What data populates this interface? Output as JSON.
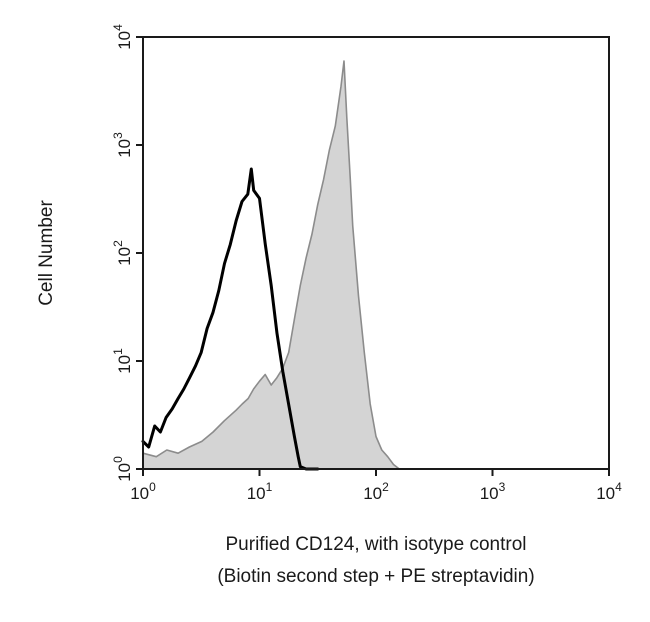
{
  "chart_data": {
    "type": "area",
    "title": "",
    "xlabel": "Purified CD124, with isotype control",
    "xlabel_line2": "(Biotin second step + PE streptavidin)",
    "ylabel": "Cell Number",
    "x_scale": "log",
    "y_scale": "log",
    "xlim": [
      1,
      10000
    ],
    "ylim": [
      1,
      10000
    ],
    "grid": false,
    "legend": "none",
    "x_ticks": [
      {
        "base": "10",
        "exp": "0",
        "value": 1
      },
      {
        "base": "10",
        "exp": "1",
        "value": 10
      },
      {
        "base": "10",
        "exp": "2",
        "value": 100
      },
      {
        "base": "10",
        "exp": "3",
        "value": 1000
      },
      {
        "base": "10",
        "exp": "4",
        "value": 10000
      }
    ],
    "y_ticks": [
      {
        "base": "10",
        "exp": "0",
        "value": 1
      },
      {
        "base": "10",
        "exp": "1",
        "value": 10
      },
      {
        "base": "10",
        "exp": "2",
        "value": 100
      },
      {
        "base": "10",
        "exp": "3",
        "value": 1000
      },
      {
        "base": "10",
        "exp": "4",
        "value": 10000
      }
    ],
    "series": [
      {
        "style": "filled",
        "fill_color": "#d4d4d4",
        "line_color": "#8c8c8c",
        "x": [
          1.0,
          1.3,
          1.6,
          2.0,
          2.5,
          3.2,
          4.0,
          5.0,
          6.3,
          7.1,
          8.0,
          8.9,
          10.0,
          11.2,
          12.6,
          14.1,
          15.8,
          17.8,
          20.0,
          22.4,
          25.1,
          28.2,
          31.6,
          35.5,
          39.8,
          44.7,
          50.1,
          53.1,
          56.2,
          60.0,
          63.1,
          70.8,
          79.4,
          89.1,
          100.0,
          112.2,
          125.9,
          141.3,
          158.5
        ],
        "y": [
          1.4,
          1.3,
          1.5,
          1.4,
          1.6,
          1.8,
          2.2,
          2.8,
          3.5,
          4.0,
          4.5,
          5.5,
          6.5,
          7.5,
          6.0,
          7.0,
          8.5,
          12.0,
          25.0,
          50.0,
          90.0,
          150.0,
          280.0,
          480.0,
          900.0,
          1500.0,
          3500.0,
          6000.0,
          1800.0,
          500.0,
          180.0,
          40.0,
          12.0,
          4.0,
          2.0,
          1.5,
          1.3,
          1.1,
          1.0
        ]
      },
      {
        "style": "line",
        "line_color": "#000000",
        "x": [
          1.0,
          1.12,
          1.26,
          1.41,
          1.58,
          1.78,
          2.0,
          2.24,
          2.51,
          2.82,
          3.16,
          3.55,
          3.98,
          4.47,
          5.01,
          5.62,
          6.31,
          7.08,
          7.94,
          8.5,
          8.91,
          10.0,
          11.22,
          12.59,
          14.13,
          15.85,
          17.78,
          19.95,
          21.5,
          22.39,
          25.12,
          28.18,
          31.62
        ],
        "y": [
          1.8,
          1.6,
          2.5,
          2.2,
          3.0,
          3.6,
          4.5,
          5.5,
          7.0,
          9.0,
          12.0,
          20.0,
          28.0,
          45.0,
          80.0,
          120.0,
          200.0,
          300.0,
          350.0,
          600.0,
          380.0,
          320.0,
          120.0,
          50.0,
          18.0,
          8.0,
          4.0,
          2.0,
          1.3,
          1.05,
          1.0,
          1.0,
          1.0
        ]
      }
    ]
  }
}
